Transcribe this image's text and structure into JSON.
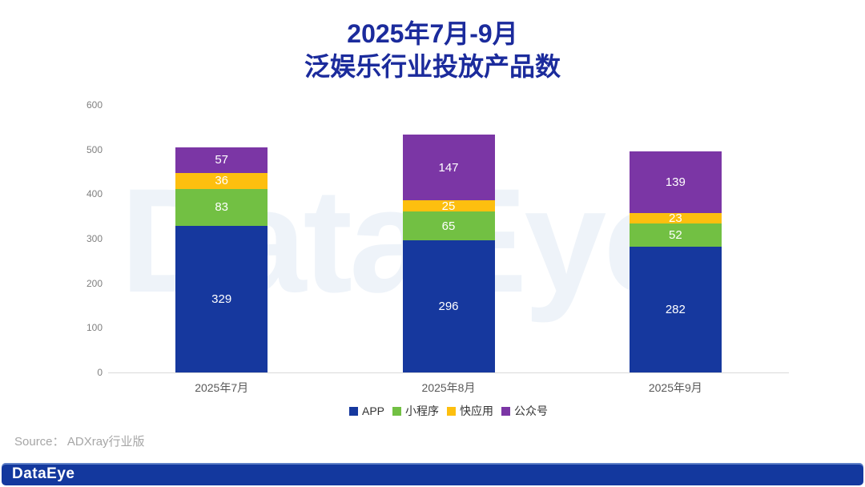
{
  "title": {
    "line1": "2025年7月-9月",
    "line2": "泛娱乐行业投放产品数"
  },
  "chart_data": {
    "type": "bar",
    "stacked": true,
    "title": "2025年7月-9月 泛娱乐行业投放产品数",
    "categories": [
      "2025年7月",
      "2025年8月",
      "2025年9月"
    ],
    "series": [
      {
        "name": "APP",
        "color": "#16389e",
        "values": [
          329,
          296,
          282
        ]
      },
      {
        "name": "小程序",
        "color": "#72c043",
        "values": [
          83,
          65,
          52
        ]
      },
      {
        "name": "快应用",
        "color": "#fdbf0f",
        "values": [
          36,
          25,
          23
        ]
      },
      {
        "name": "公众号",
        "color": "#7b36a5",
        "values": [
          57,
          147,
          139
        ]
      }
    ],
    "ylim": [
      0,
      600
    ],
    "yticks": [
      0,
      100,
      200,
      300,
      400,
      500,
      600
    ],
    "xlabel": "",
    "ylabel": "",
    "grid": false,
    "legend_position": "bottom",
    "value_labels": "inside-white"
  },
  "source_text": "Source： ADXray行业版",
  "watermark_text": "DataEye",
  "footer": {
    "logo_text": "DataEye",
    "bar_color": "#13389e"
  },
  "colors": {
    "title": "#1b2b9c",
    "axis_text": "#7f7f7f",
    "xaxis_text": "#595959",
    "legend_text": "#333333",
    "value_label": "#ffffff",
    "axis_line": "#d9d9d9",
    "source_text": "#a6a6a6",
    "watermark": "#eef3f9"
  }
}
